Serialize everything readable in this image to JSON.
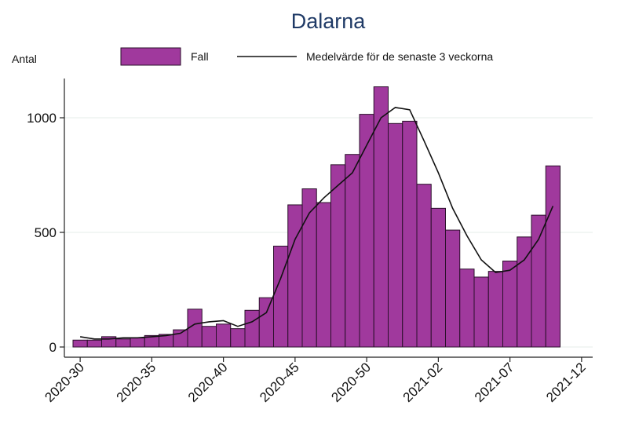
{
  "chart_data": {
    "type": "bar",
    "title": "Dalarna",
    "ylabel": "Antal",
    "xlabel": "",
    "ylim": [
      0,
      1150
    ],
    "yticks": [
      0,
      500,
      1000
    ],
    "grid": true,
    "legend_position": "top",
    "x_tick_labels": [
      "2020-30",
      "2020-35",
      "2020-40",
      "2020-45",
      "2020-50",
      "2021-02",
      "2021-07",
      "2021-12"
    ],
    "x_tick_positions": [
      "2020-30",
      "2020-35",
      "2020-40",
      "2020-45",
      "2020-50",
      "2021-02",
      "2021-07",
      "2021-12"
    ],
    "weeks": [
      "2020-30",
      "2020-31",
      "2020-32",
      "2020-33",
      "2020-34",
      "2020-35",
      "2020-36",
      "2020-37",
      "2020-38",
      "2020-39",
      "2020-40",
      "2020-41",
      "2020-42",
      "2020-43",
      "2020-44",
      "2020-45",
      "2020-46",
      "2020-47",
      "2020-48",
      "2020-49",
      "2020-50",
      "2020-51",
      "2020-52",
      "2020-53",
      "2021-01",
      "2021-02",
      "2021-03",
      "2021-04",
      "2021-05",
      "2021-06",
      "2021-07",
      "2021-08",
      "2021-09",
      "2021-10"
    ],
    "series": [
      {
        "name": "Fall",
        "type": "bar",
        "color": "#a0399d",
        "values": [
          30,
          30,
          45,
          35,
          40,
          50,
          55,
          75,
          165,
          90,
          100,
          80,
          160,
          215,
          440,
          620,
          690,
          630,
          795,
          840,
          1015,
          1135,
          975,
          985,
          710,
          605,
          510,
          340,
          305,
          330,
          375,
          480,
          575,
          790
        ]
      },
      {
        "name": "Medelvärde för de senaste 3 veckorna",
        "type": "line",
        "color": "#111111",
        "values": [
          45,
          35,
          35,
          40,
          40,
          45,
          50,
          60,
          100,
          110,
          115,
          90,
          110,
          150,
          300,
          470,
          585,
          650,
          705,
          760,
          880,
          1000,
          1045,
          1035,
          900,
          760,
          605,
          485,
          380,
          325,
          335,
          380,
          470,
          615
        ]
      }
    ]
  }
}
